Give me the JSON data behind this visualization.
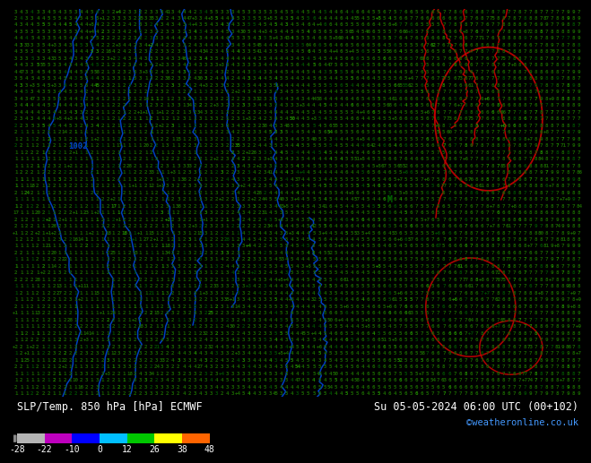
{
  "title_left": "SLP/Temp. 850 hPa [hPa] ECMWF",
  "title_right": "Su 05-05-2024 06:00 UTC (00+102)",
  "credit": "©weatheronline.co.uk",
  "colorbar_values": [
    -28,
    -22,
    -10,
    0,
    12,
    26,
    38,
    48
  ],
  "colorbar_colors": [
    "#b4b4b4",
    "#be00be",
    "#0000ff",
    "#00bfff",
    "#00c800",
    "#ffff00",
    "#ff6400",
    "#c80000"
  ],
  "bg_color": "#33cc00",
  "num_color_dark": "#006400",
  "num_color_mid": "#005500",
  "fig_width": 6.34,
  "fig_height": 4.9,
  "map_rows": 58,
  "map_cols": 105
}
